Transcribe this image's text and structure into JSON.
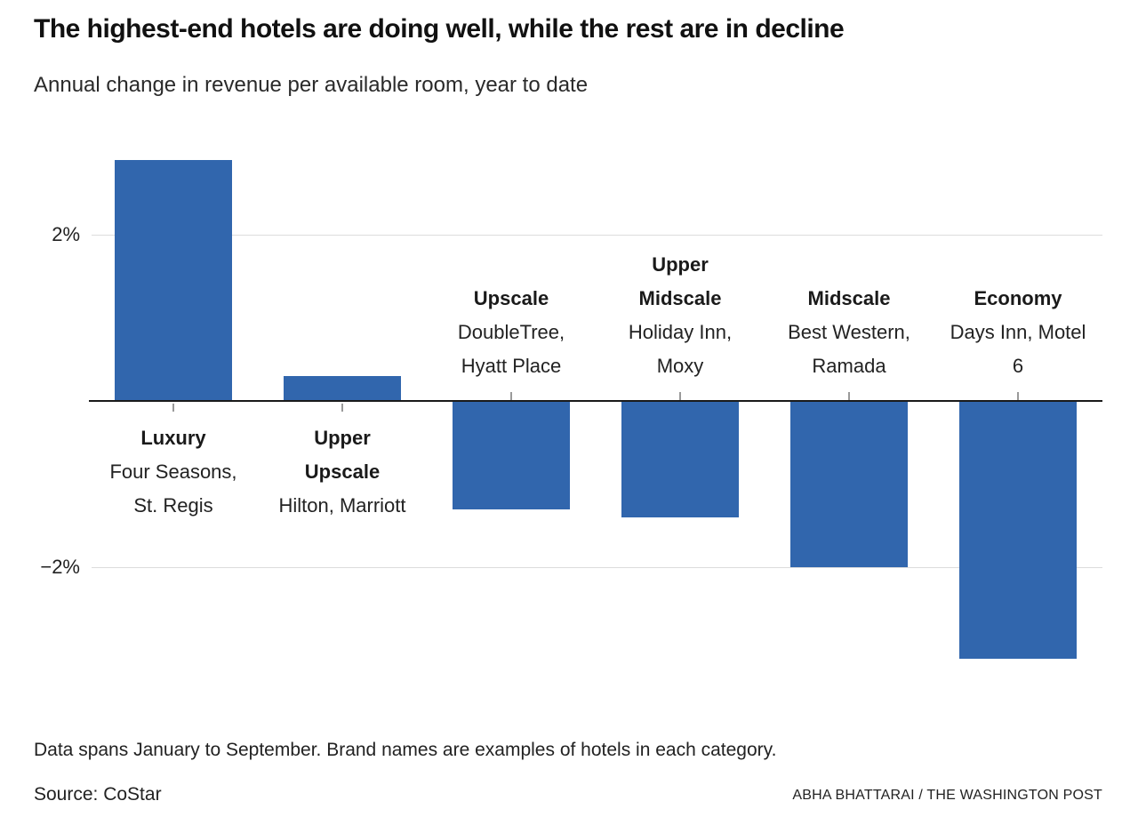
{
  "header": {
    "title": "The highest-end hotels are doing well, while the rest are in decline",
    "subtitle": "Annual change in revenue per available room, year to date"
  },
  "chart_data": {
    "type": "bar",
    "title": "The highest-end hotels are doing well, while the rest are in decline",
    "subtitle": "Annual change in revenue per available room, year to date",
    "ylabel": "Annual change in revenue per available room (%)",
    "xlabel": "",
    "ylim": [
      -3.6,
      3.2
    ],
    "grid": "horizontal",
    "bar_color": "#3166ad",
    "axis_ticks": [
      {
        "value": 2,
        "label": "2%"
      },
      {
        "value": -2,
        "label": "−2%"
      }
    ],
    "categories": [
      {
        "name": "Luxury",
        "name_lines": [
          "Luxury"
        ],
        "brands": "Four Seasons, St. Regis",
        "brand_lines": [
          "Four Seasons,",
          "St. Regis"
        ],
        "value": 2.9
      },
      {
        "name": "Upper Upscale",
        "name_lines": [
          "Upper",
          "Upscale"
        ],
        "brands": "Hilton, Marriott",
        "brand_lines": [
          "Hilton, Marriott"
        ],
        "value": 0.3
      },
      {
        "name": "Upscale",
        "name_lines": [
          "Upscale"
        ],
        "brands": "DoubleTree, Hyatt Place",
        "brand_lines": [
          "DoubleTree,",
          "Hyatt Place"
        ],
        "value": -1.3
      },
      {
        "name": "Upper Midscale",
        "name_lines": [
          "Upper",
          "Midscale"
        ],
        "brands": "Holiday Inn, Moxy",
        "brand_lines": [
          "Holiday Inn,",
          "Moxy"
        ],
        "value": -1.4
      },
      {
        "name": "Midscale",
        "name_lines": [
          "Midscale"
        ],
        "brands": "Best Western, Ramada",
        "brand_lines": [
          "Best Western,",
          "Ramada"
        ],
        "value": -2.0
      },
      {
        "name": "Economy",
        "name_lines": [
          "Economy"
        ],
        "brands": "Days Inn, Motel 6",
        "brand_lines": [
          "Days Inn, Motel",
          "6"
        ],
        "value": -3.1
      }
    ]
  },
  "footer": {
    "note": "Data spans January to September. Brand names are examples of hotels in each category.",
    "source": "Source: CoStar",
    "credit": "ABHA BHATTARAI / THE WASHINGTON POST"
  }
}
